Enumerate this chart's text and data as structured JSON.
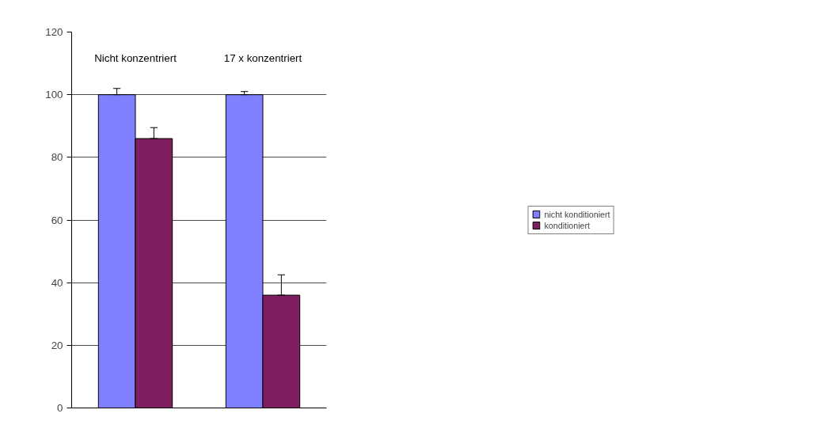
{
  "chart_data": {
    "type": "bar",
    "categories": [
      "Nicht konzentriert",
      "17 x konzentriert"
    ],
    "series": [
      {
        "name": "nicht konditioniert",
        "color": "#8080ff",
        "values": [
          100,
          100
        ],
        "errors": [
          [
            100,
            102
          ],
          [
            100,
            101
          ]
        ]
      },
      {
        "name": "konditioniert",
        "color": "#7f1f5f",
        "values": [
          86,
          36
        ],
        "errors": [
          [
            86,
            89.5
          ],
          [
            36,
            42.5
          ]
        ]
      }
    ],
    "ylim": [
      0,
      120
    ],
    "yticks": [
      0,
      20,
      40,
      60,
      80,
      100,
      120
    ],
    "grid": "y",
    "legend": "right"
  }
}
